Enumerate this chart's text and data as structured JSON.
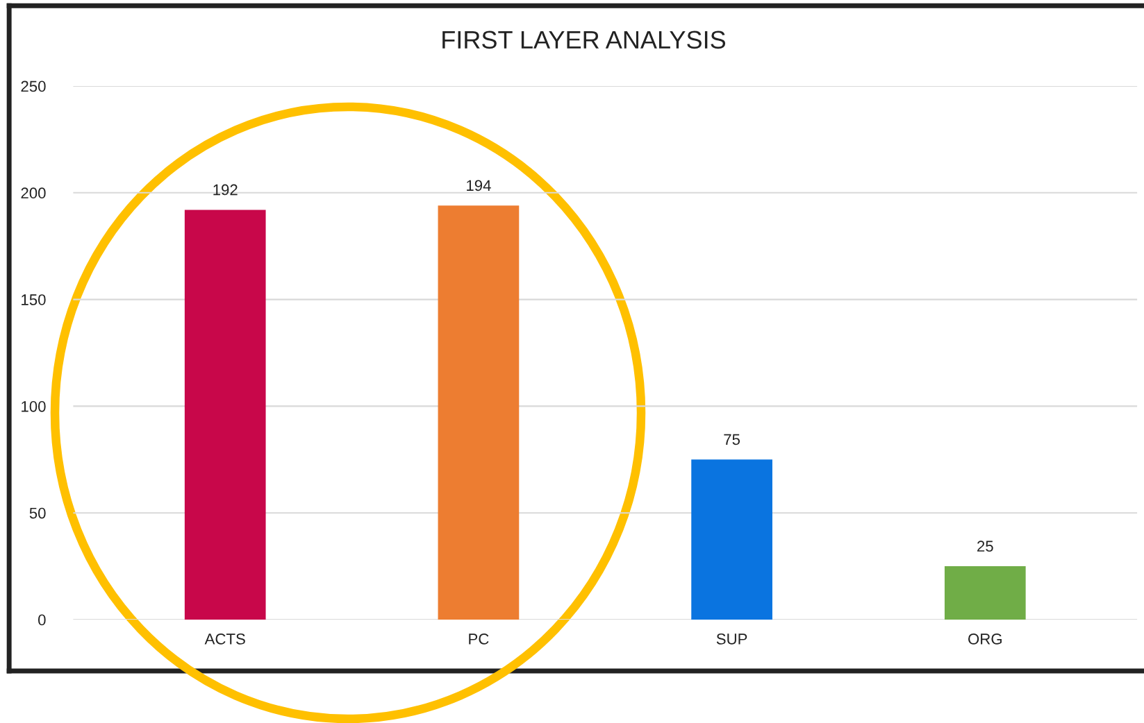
{
  "chart_data": {
    "type": "bar",
    "title": "FIRST LAYER ANALYSIS",
    "categories": [
      "ACTS",
      "PC",
      "SUP",
      "ORG"
    ],
    "values": [
      192,
      194,
      75,
      25
    ],
    "colors": [
      "#c8074a",
      "#ed7d31",
      "#0a74e0",
      "#70ad47"
    ],
    "ylim": [
      0,
      250
    ],
    "yticks": [
      0,
      50,
      100,
      150,
      200,
      250
    ],
    "grid": "y",
    "data_labels": true,
    "legend": false
  }
}
